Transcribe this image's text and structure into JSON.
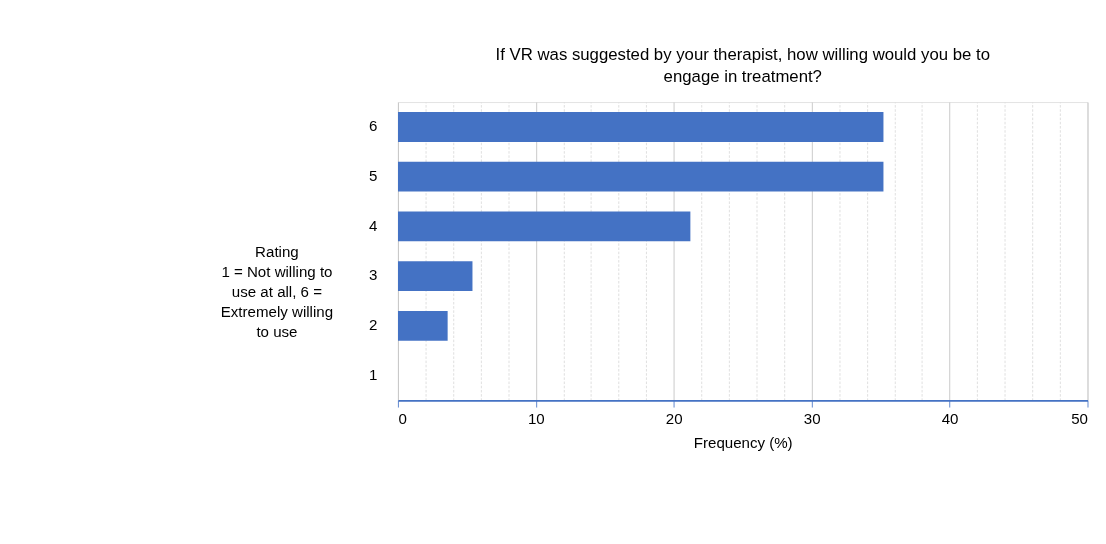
{
  "chart_data": {
    "type": "bar",
    "orientation": "horizontal",
    "title": "If VR was suggested by your therapist, how willing would you be to\nengage in treatment?",
    "xlabel": "Frequency (%)",
    "ylabel": "Rating\n1 = Not willing to\nuse at all, 6 =\nExtremely willing\nto use",
    "categories": [
      "6",
      "5",
      "4",
      "3",
      "2",
      "1"
    ],
    "values": [
      35.2,
      35.2,
      21.2,
      5.4,
      3.6,
      0
    ],
    "color": "#4472c4",
    "xlim": [
      0,
      50
    ],
    "xticks": [
      0,
      {
        "value": 2,
        "label": null
      },
      {
        "value": 4,
        "label": null
      },
      {
        "value": 6,
        "label": null
      },
      {
        "value": 8,
        "label": null
      },
      10,
      {
        "value": 12,
        "label": null
      },
      {
        "value": 14,
        "label": null
      },
      {
        "value": 16,
        "label": null
      },
      {
        "value": 18,
        "label": null
      },
      20,
      {
        "value": 22,
        "label": null
      },
      {
        "value": 24,
        "label": null
      },
      {
        "value": 26,
        "label": null
      },
      {
        "value": 28,
        "label": null
      },
      30,
      {
        "value": 32,
        "label": null
      },
      {
        "value": 34,
        "label": null
      },
      {
        "value": 36,
        "label": null
      },
      {
        "value": 38,
        "label": null
      },
      40,
      {
        "value": 42,
        "label": null
      },
      {
        "value": 44,
        "label": null
      },
      {
        "value": 46,
        "label": null
      },
      {
        "value": 48,
        "label": null
      },
      50
    ],
    "grid": "x"
  }
}
